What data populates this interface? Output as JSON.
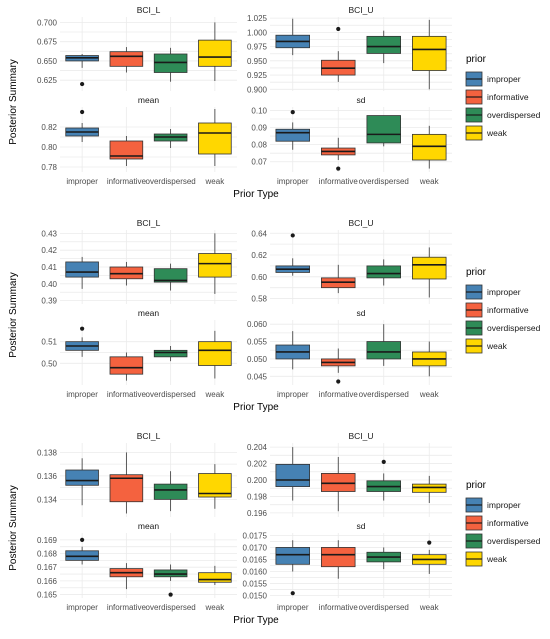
{
  "chart_data": [
    {
      "type": "boxplot",
      "xlabel": "Prior Type",
      "ylabel": "Posterior Summary",
      "categories": [
        "improper",
        "informative",
        "overdispersed",
        "weak"
      ],
      "legend": {
        "title": "prior",
        "position": "right",
        "entries": [
          "improper",
          "informative",
          "overdispersed",
          "weak"
        ]
      },
      "colors": {
        "improper": "#4682B4",
        "informative": "#F4623F",
        "overdispersed": "#2E8B57",
        "weak": "#FFD700"
      },
      "grid": true,
      "facets": [
        {
          "name": "BCI_L",
          "yticks": [
            "0.625",
            "0.650",
            "0.675",
            "0.700"
          ],
          "yticks_num": [
            0.625,
            0.65,
            0.675,
            0.7
          ],
          "ylim": [
            0.611,
            0.707
          ],
          "boxes": [
            {
              "category": "improper",
              "min": 0.641,
              "q1": 0.65,
              "median": 0.654,
              "q3": 0.657,
              "max": 0.659,
              "outliers": [
                0.62
              ]
            },
            {
              "category": "informative",
              "min": 0.635,
              "q1": 0.643,
              "median": 0.656,
              "q3": 0.662,
              "max": 0.668,
              "outliers": []
            },
            {
              "category": "overdispersed",
              "min": 0.623,
              "q1": 0.635,
              "median": 0.648,
              "q3": 0.659,
              "max": 0.667,
              "outliers": []
            },
            {
              "category": "weak",
              "min": 0.624,
              "q1": 0.643,
              "median": 0.655,
              "q3": 0.677,
              "max": 0.7,
              "outliers": []
            }
          ]
        },
        {
          "name": "BCI_U",
          "yticks": [
            "0.900",
            "0.925",
            "0.950",
            "0.975",
            "1.000",
            "1.025"
          ],
          "yticks_num": [
            0.9,
            0.925,
            0.95,
            0.975,
            1.0,
            1.025
          ],
          "ylim": [
            0.897,
            1.027
          ],
          "boxes": [
            {
              "category": "improper",
              "min": 0.96,
              "q1": 0.973,
              "median": 0.984,
              "q3": 0.995,
              "max": 1.024,
              "outliers": []
            },
            {
              "category": "informative",
              "min": 0.913,
              "q1": 0.925,
              "median": 0.937,
              "q3": 0.951,
              "max": 0.967,
              "outliers": [
                1.006
              ]
            },
            {
              "category": "overdispersed",
              "min": 0.946,
              "q1": 0.963,
              "median": 0.975,
              "q3": 0.993,
              "max": 1.003,
              "outliers": []
            },
            {
              "category": "weak",
              "min": 0.9,
              "q1": 0.933,
              "median": 0.97,
              "q3": 0.993,
              "max": 1.022,
              "outliers": []
            }
          ]
        },
        {
          "name": "mean",
          "yticks": [
            "0.78",
            "0.80",
            "0.82"
          ],
          "yticks_num": [
            0.78,
            0.8,
            0.82
          ],
          "ylim": [
            0.775,
            0.84
          ],
          "boxes": [
            {
              "category": "improper",
              "min": 0.805,
              "q1": 0.811,
              "median": 0.815,
              "q3": 0.819,
              "max": 0.824,
              "outliers": [
                0.835
              ]
            },
            {
              "category": "informative",
              "min": 0.781,
              "q1": 0.788,
              "median": 0.791,
              "q3": 0.806,
              "max": 0.811,
              "outliers": []
            },
            {
              "category": "overdispersed",
              "min": 0.799,
              "q1": 0.806,
              "median": 0.81,
              "q3": 0.813,
              "max": 0.818,
              "outliers": []
            },
            {
              "category": "weak",
              "min": 0.781,
              "q1": 0.793,
              "median": 0.814,
              "q3": 0.824,
              "max": 0.838,
              "outliers": []
            }
          ]
        },
        {
          "name": "sd",
          "yticks": [
            "0.07",
            "0.08",
            "0.09",
            "0.10"
          ],
          "yticks_num": [
            0.07,
            0.08,
            0.09,
            0.1
          ],
          "ylim": [
            0.064,
            0.102
          ],
          "boxes": [
            {
              "category": "improper",
              "min": 0.077,
              "q1": 0.082,
              "median": 0.087,
              "q3": 0.089,
              "max": 0.093,
              "outliers": [
                0.099
              ]
            },
            {
              "category": "informative",
              "min": 0.071,
              "q1": 0.074,
              "median": 0.076,
              "q3": 0.078,
              "max": 0.084,
              "outliers": [
                0.066
              ]
            },
            {
              "category": "overdispersed",
              "min": 0.079,
              "q1": 0.081,
              "median": 0.086,
              "q3": 0.097,
              "max": 0.097,
              "outliers": []
            },
            {
              "category": "weak",
              "min": 0.066,
              "q1": 0.071,
              "median": 0.079,
              "q3": 0.086,
              "max": 0.091,
              "outliers": []
            }
          ]
        }
      ]
    },
    {
      "type": "boxplot",
      "xlabel": "Prior Type",
      "ylabel": "Posterior Summary",
      "categories": [
        "improper",
        "informative",
        "overdispersed",
        "weak"
      ],
      "legend": {
        "title": "prior",
        "position": "right",
        "entries": [
          "improper",
          "informative",
          "overdispersed",
          "weak"
        ]
      },
      "colors": {
        "improper": "#4682B4",
        "informative": "#F4623F",
        "overdispersed": "#2E8B57",
        "weak": "#FFD700"
      },
      "grid": true,
      "facets": [
        {
          "name": "BCI_L",
          "yticks": [
            "0.39",
            "0.40",
            "0.41",
            "0.42",
            "0.43"
          ],
          "yticks_num": [
            0.39,
            0.4,
            0.41,
            0.42,
            0.43
          ],
          "ylim": [
            0.388,
            0.432
          ],
          "boxes": [
            {
              "category": "improper",
              "min": 0.397,
              "q1": 0.404,
              "median": 0.407,
              "q3": 0.413,
              "max": 0.416,
              "outliers": []
            },
            {
              "category": "informative",
              "min": 0.399,
              "q1": 0.403,
              "median": 0.406,
              "q3": 0.41,
              "max": 0.413,
              "outliers": []
            },
            {
              "category": "overdispersed",
              "min": 0.396,
              "q1": 0.401,
              "median": 0.402,
              "q3": 0.409,
              "max": 0.412,
              "outliers": []
            },
            {
              "category": "weak",
              "min": 0.394,
              "q1": 0.404,
              "median": 0.412,
              "q3": 0.418,
              "max": 0.43,
              "outliers": []
            }
          ]
        },
        {
          "name": "BCI_U",
          "yticks": [
            "0.58",
            "0.60",
            "0.62",
            "0.64"
          ],
          "yticks_num": [
            0.58,
            0.6,
            0.62,
            0.64
          ],
          "ylim": [
            0.575,
            0.643
          ],
          "boxes": [
            {
              "category": "improper",
              "min": 0.601,
              "q1": 0.604,
              "median": 0.607,
              "q3": 0.61,
              "max": 0.617,
              "outliers": [
                0.638
              ]
            },
            {
              "category": "informative",
              "min": 0.585,
              "q1": 0.59,
              "median": 0.595,
              "q3": 0.599,
              "max": 0.611,
              "outliers": []
            },
            {
              "category": "overdispersed",
              "min": 0.592,
              "q1": 0.599,
              "median": 0.603,
              "q3": 0.61,
              "max": 0.616,
              "outliers": []
            },
            {
              "category": "weak",
              "min": 0.581,
              "q1": 0.598,
              "median": 0.611,
              "q3": 0.618,
              "max": 0.627,
              "outliers": []
            }
          ]
        },
        {
          "name": "mean",
          "yticks": [
            "0.50",
            "0.51"
          ],
          "yticks_num": [
            0.5,
            0.51
          ],
          "ylim": [
            0.49,
            0.52
          ],
          "boxes": [
            {
              "category": "improper",
              "min": 0.503,
              "q1": 0.506,
              "median": 0.508,
              "q3": 0.51,
              "max": 0.512,
              "outliers": [
                0.516
              ]
            },
            {
              "category": "informative",
              "min": 0.492,
              "q1": 0.495,
              "median": 0.498,
              "q3": 0.503,
              "max": 0.505,
              "outliers": []
            },
            {
              "category": "overdispersed",
              "min": 0.501,
              "q1": 0.503,
              "median": 0.505,
              "q3": 0.506,
              "max": 0.508,
              "outliers": []
            },
            {
              "category": "weak",
              "min": 0.493,
              "q1": 0.499,
              "median": 0.506,
              "q3": 0.51,
              "max": 0.515,
              "outliers": []
            }
          ]
        },
        {
          "name": "sd",
          "yticks": [
            "0.045",
            "0.050",
            "0.055",
            "0.060"
          ],
          "yticks_num": [
            0.045,
            0.05,
            0.055,
            0.06
          ],
          "ylim": [
            0.0425,
            0.0612
          ],
          "boxes": [
            {
              "category": "improper",
              "min": 0.047,
              "q1": 0.05,
              "median": 0.052,
              "q3": 0.054,
              "max": 0.058,
              "outliers": []
            },
            {
              "category": "informative",
              "min": 0.046,
              "q1": 0.048,
              "median": 0.049,
              "q3": 0.05,
              "max": 0.053,
              "outliers": [
                0.0435
              ]
            },
            {
              "category": "overdispersed",
              "min": 0.048,
              "q1": 0.05,
              "median": 0.052,
              "q3": 0.055,
              "max": 0.06,
              "outliers": []
            },
            {
              "category": "weak",
              "min": 0.045,
              "q1": 0.048,
              "median": 0.05,
              "q3": 0.052,
              "max": 0.055,
              "outliers": []
            }
          ]
        }
      ]
    },
    {
      "type": "boxplot",
      "xlabel": "Prior Type",
      "ylabel": "Posterior Summary",
      "categories": [
        "improper",
        "informative",
        "overdispersed",
        "weak"
      ],
      "legend": {
        "title": "prior",
        "position": "right",
        "entries": [
          "improper",
          "informative",
          "overdispersed",
          "weak"
        ]
      },
      "colors": {
        "improper": "#4682B4",
        "informative": "#F4623F",
        "overdispersed": "#2E8B57",
        "weak": "#FFD700"
      },
      "grid": true,
      "facets": [
        {
          "name": "BCI_L",
          "yticks": [
            "0.134",
            "0.136",
            "0.138"
          ],
          "yticks_num": [
            0.134,
            0.136,
            0.138
          ],
          "ylim": [
            0.1325,
            0.1388
          ],
          "boxes": [
            {
              "category": "improper",
              "min": 0.1335,
              "q1": 0.1352,
              "median": 0.1356,
              "q3": 0.1365,
              "max": 0.1375,
              "outliers": []
            },
            {
              "category": "informative",
              "min": 0.1328,
              "q1": 0.1338,
              "median": 0.1358,
              "q3": 0.1361,
              "max": 0.138,
              "outliers": []
            },
            {
              "category": "overdispersed",
              "min": 0.133,
              "q1": 0.134,
              "median": 0.1348,
              "q3": 0.1353,
              "max": 0.1364,
              "outliers": []
            },
            {
              "category": "weak",
              "min": 0.1332,
              "q1": 0.1342,
              "median": 0.1345,
              "q3": 0.1362,
              "max": 0.137,
              "outliers": []
            }
          ]
        },
        {
          "name": "BCI_U",
          "yticks": [
            "0.196",
            "0.198",
            "0.200",
            "0.202",
            "0.204"
          ],
          "yticks_num": [
            0.196,
            0.198,
            0.2,
            0.202,
            0.204
          ],
          "ylim": [
            0.1955,
            0.2045
          ],
          "boxes": [
            {
              "category": "improper",
              "min": 0.1975,
              "q1": 0.1992,
              "median": 0.2,
              "q3": 0.2019,
              "max": 0.204,
              "outliers": []
            },
            {
              "category": "informative",
              "min": 0.1962,
              "q1": 0.1986,
              "median": 0.1996,
              "q3": 0.2008,
              "max": 0.2028,
              "outliers": []
            },
            {
              "category": "overdispersed",
              "min": 0.1975,
              "q1": 0.1986,
              "median": 0.1992,
              "q3": 0.1999,
              "max": 0.2008,
              "outliers": [
                0.2022
              ]
            },
            {
              "category": "weak",
              "min": 0.1972,
              "q1": 0.1985,
              "median": 0.1991,
              "q3": 0.1995,
              "max": 0.2005,
              "outliers": []
            }
          ]
        },
        {
          "name": "mean",
          "yticks": [
            "0.165",
            "0.166",
            "0.167",
            "0.168",
            "0.169"
          ],
          "yticks_num": [
            0.165,
            0.166,
            0.167,
            0.168,
            0.169
          ],
          "ylim": [
            0.16475,
            0.1695
          ],
          "boxes": [
            {
              "category": "improper",
              "min": 0.1672,
              "q1": 0.1675,
              "median": 0.1678,
              "q3": 0.1682,
              "max": 0.1685,
              "outliers": [
                0.169
              ]
            },
            {
              "category": "informative",
              "min": 0.1654,
              "q1": 0.1663,
              "median": 0.1666,
              "q3": 0.1669,
              "max": 0.1673,
              "outliers": []
            },
            {
              "category": "overdispersed",
              "min": 0.166,
              "q1": 0.1663,
              "median": 0.1665,
              "q3": 0.1668,
              "max": 0.1672,
              "outliers": [
                0.165
              ]
            },
            {
              "category": "weak",
              "min": 0.1657,
              "q1": 0.1659,
              "median": 0.1661,
              "q3": 0.1666,
              "max": 0.1671,
              "outliers": []
            }
          ]
        },
        {
          "name": "sd",
          "yticks": [
            "0.0150",
            "0.0155",
            "0.0160",
            "0.0165",
            "0.0170",
            "0.0175"
          ],
          "yticks_num": [
            0.015,
            0.0155,
            0.016,
            0.0165,
            0.017,
            0.0175
          ],
          "ylim": [
            0.0149,
            0.0176
          ],
          "boxes": [
            {
              "category": "improper",
              "min": 0.016,
              "q1": 0.0163,
              "median": 0.0167,
              "q3": 0.017,
              "max": 0.0173,
              "outliers": [
                0.0151
              ]
            },
            {
              "category": "informative",
              "min": 0.0157,
              "q1": 0.0162,
              "median": 0.0167,
              "q3": 0.017,
              "max": 0.0173,
              "outliers": []
            },
            {
              "category": "overdispersed",
              "min": 0.0161,
              "q1": 0.0164,
              "median": 0.0166,
              "q3": 0.0168,
              "max": 0.017,
              "outliers": []
            },
            {
              "category": "weak",
              "min": 0.0159,
              "q1": 0.0163,
              "median": 0.0165,
              "q3": 0.0167,
              "max": 0.0169,
              "outliers": [
                0.0172
              ]
            }
          ]
        }
      ]
    }
  ]
}
